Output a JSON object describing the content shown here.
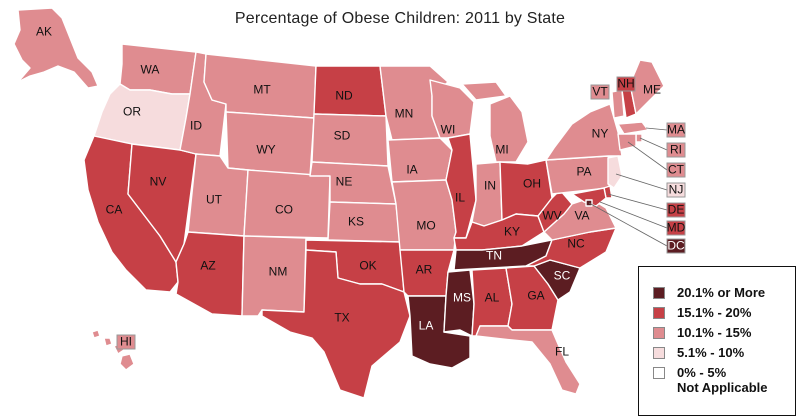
{
  "title": "Percentage of Obese Children: 2011 by State",
  "colors": {
    "c1": "#5c1d22",
    "c2": "#c64046",
    "c3": "#df8c90",
    "c4": "#f6dcdd",
    "c5": "#ffffff"
  },
  "legend": [
    {
      "label": "20.1% or More",
      "color": "c1"
    },
    {
      "label": "15.1% - 20%",
      "color": "c2"
    },
    {
      "label": "10.1% - 15%",
      "color": "c3"
    },
    {
      "label": "5.1% - 10%",
      "color": "c4"
    },
    {
      "label": "0% - 5%",
      "label2": "Not Applicable",
      "color": "c5"
    }
  ],
  "states": [
    {
      "abbr": "AK",
      "cat": "c3"
    },
    {
      "abbr": "HI",
      "cat": "c3"
    },
    {
      "abbr": "WA",
      "cat": "c3"
    },
    {
      "abbr": "OR",
      "cat": "c4"
    },
    {
      "abbr": "CA",
      "cat": "c2"
    },
    {
      "abbr": "NV",
      "cat": "c2"
    },
    {
      "abbr": "ID",
      "cat": "c3"
    },
    {
      "abbr": "MT",
      "cat": "c3"
    },
    {
      "abbr": "WY",
      "cat": "c3"
    },
    {
      "abbr": "UT",
      "cat": "c3"
    },
    {
      "abbr": "AZ",
      "cat": "c2"
    },
    {
      "abbr": "CO",
      "cat": "c3"
    },
    {
      "abbr": "NM",
      "cat": "c3"
    },
    {
      "abbr": "ND",
      "cat": "c2"
    },
    {
      "abbr": "SD",
      "cat": "c3"
    },
    {
      "abbr": "NE",
      "cat": "c3"
    },
    {
      "abbr": "KS",
      "cat": "c3"
    },
    {
      "abbr": "OK",
      "cat": "c2"
    },
    {
      "abbr": "TX",
      "cat": "c2"
    },
    {
      "abbr": "MN",
      "cat": "c3"
    },
    {
      "abbr": "IA",
      "cat": "c3"
    },
    {
      "abbr": "MO",
      "cat": "c3"
    },
    {
      "abbr": "AR",
      "cat": "c2"
    },
    {
      "abbr": "LA",
      "cat": "c1"
    },
    {
      "abbr": "WI",
      "cat": "c3"
    },
    {
      "abbr": "IL",
      "cat": "c2"
    },
    {
      "abbr": "MI",
      "cat": "c3"
    },
    {
      "abbr": "IN",
      "cat": "c3"
    },
    {
      "abbr": "OH",
      "cat": "c2"
    },
    {
      "abbr": "KY",
      "cat": "c2"
    },
    {
      "abbr": "TN",
      "cat": "c1"
    },
    {
      "abbr": "MS",
      "cat": "c1"
    },
    {
      "abbr": "AL",
      "cat": "c2"
    },
    {
      "abbr": "GA",
      "cat": "c2"
    },
    {
      "abbr": "FL",
      "cat": "c3"
    },
    {
      "abbr": "SC",
      "cat": "c1"
    },
    {
      "abbr": "NC",
      "cat": "c2"
    },
    {
      "abbr": "VA",
      "cat": "c3"
    },
    {
      "abbr": "WV",
      "cat": "c2"
    },
    {
      "abbr": "PA",
      "cat": "c3"
    },
    {
      "abbr": "NY",
      "cat": "c3"
    },
    {
      "abbr": "VT",
      "cat": "c3"
    },
    {
      "abbr": "NH",
      "cat": "c2"
    },
    {
      "abbr": "ME",
      "cat": "c3"
    },
    {
      "abbr": "MA",
      "cat": "c3"
    },
    {
      "abbr": "RI",
      "cat": "c3"
    },
    {
      "abbr": "CT",
      "cat": "c3"
    },
    {
      "abbr": "NJ",
      "cat": "c4"
    },
    {
      "abbr": "DE",
      "cat": "c2"
    },
    {
      "abbr": "MD",
      "cat": "c2"
    },
    {
      "abbr": "DC",
      "cat": "c1"
    }
  ]
}
